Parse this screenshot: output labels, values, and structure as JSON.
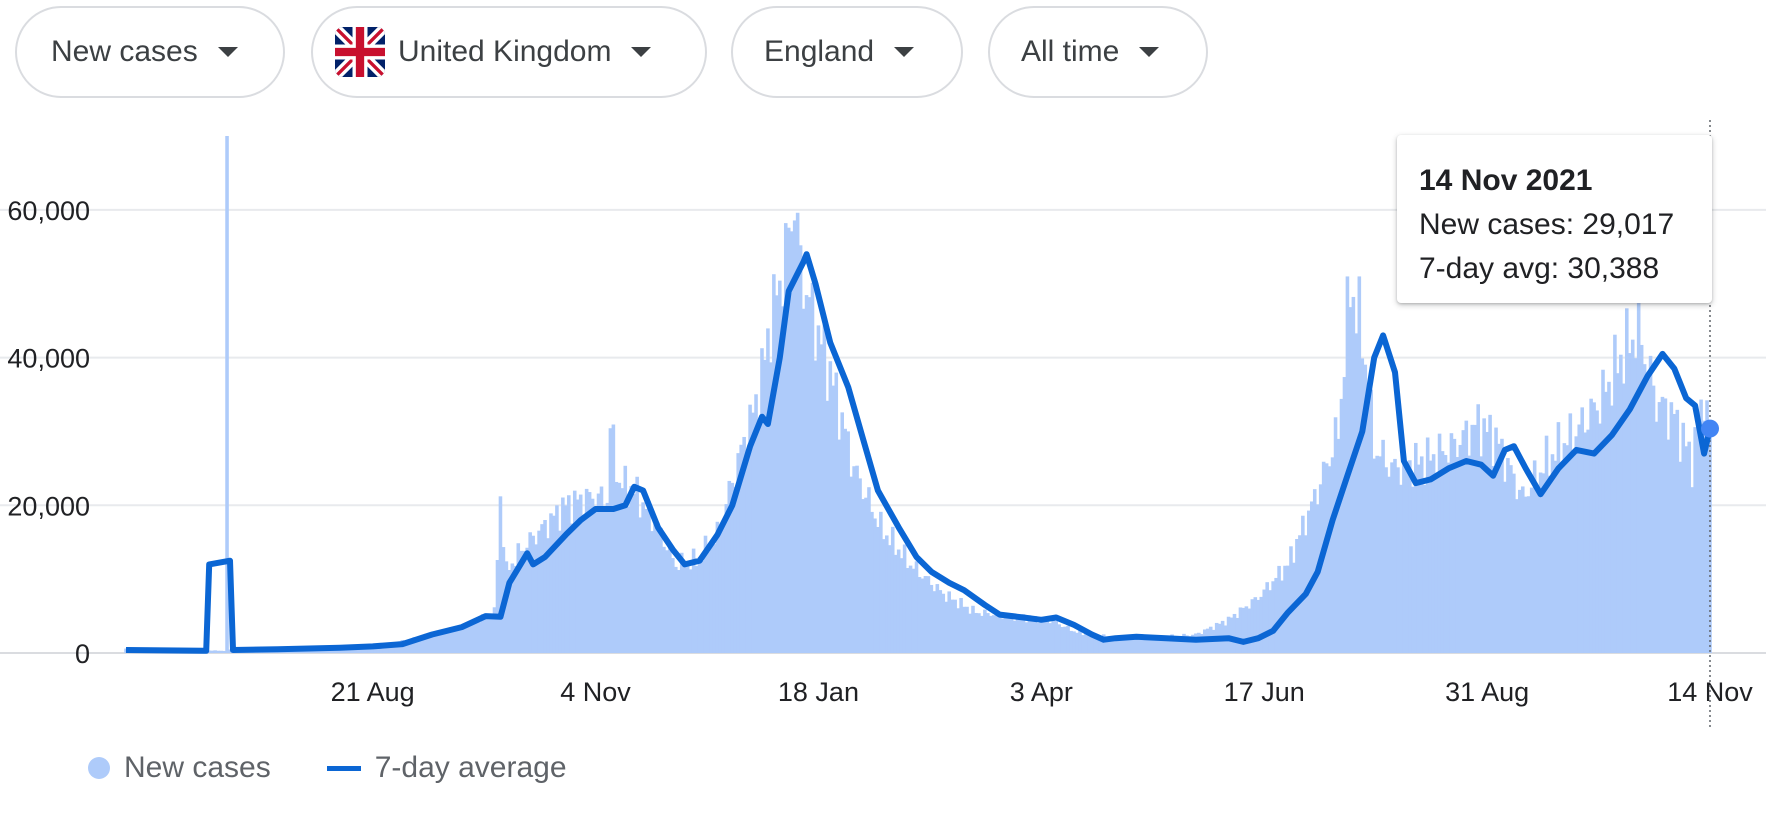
{
  "filters": {
    "metric": "New cases",
    "country": "United Kingdom",
    "region": "England",
    "period": "All time"
  },
  "colors": {
    "bars": "#aecbfa",
    "line": "#0b66d4",
    "marker": "#4285f4",
    "grid": "#e8eaed"
  },
  "tooltip": {
    "date": "14 Nov 2021",
    "new_cases_label": "New cases: 29,017",
    "avg_label": "7-day avg: 30,388"
  },
  "legend": {
    "bars_label": "New cases",
    "line_label": "7-day average"
  },
  "chart_data": {
    "type": "bar",
    "combined_with": "line",
    "x_axis_type": "date",
    "x_ticks": [
      {
        "date": "2020-08-21",
        "label": "21 Aug"
      },
      {
        "date": "2020-11-04",
        "label": "4 Nov"
      },
      {
        "date": "2021-01-18",
        "label": "18 Jan"
      },
      {
        "date": "2021-04-03",
        "label": "3 Apr"
      },
      {
        "date": "2021-06-17",
        "label": "17 Jun"
      },
      {
        "date": "2021-08-31",
        "label": "31 Aug"
      },
      {
        "date": "2021-11-14",
        "label": "14 Nov"
      }
    ],
    "xlim": [
      "2020-05-30",
      "2021-11-14"
    ],
    "ylim": [
      0,
      70000
    ],
    "y_ticks": [
      0,
      20000,
      40000,
      60000
    ],
    "y_tick_labels": [
      "0",
      "20,000",
      "40,000",
      "60,000"
    ],
    "grid": true,
    "legend_position": "bottom-left",
    "series": [
      {
        "name": "New cases",
        "style": "bars",
        "daily_anomaly": {
          "date": "2020-07-03",
          "value": 70000
        },
        "points": [
          [
            "2020-05-30",
            600
          ],
          [
            "2020-07-02",
            300
          ],
          [
            "2020-07-03",
            70000
          ],
          [
            "2020-07-04",
            400
          ],
          [
            "2020-07-15",
            500
          ],
          [
            "2020-08-01",
            700
          ],
          [
            "2020-08-21",
            900
          ],
          [
            "2020-09-05",
            2000
          ],
          [
            "2020-09-20",
            3500
          ],
          [
            "2020-10-01",
            5500
          ],
          [
            "2020-10-02",
            13000
          ],
          [
            "2020-10-03",
            21000
          ],
          [
            "2020-10-05",
            11000
          ],
          [
            "2020-10-10",
            14000
          ],
          [
            "2020-10-20",
            18000
          ],
          [
            "2020-10-25",
            20000
          ],
          [
            "2020-11-01",
            21000
          ],
          [
            "2020-11-08",
            21000
          ],
          [
            "2020-11-09",
            30500
          ],
          [
            "2020-11-12",
            23000
          ],
          [
            "2020-11-17",
            22000
          ],
          [
            "2020-11-25",
            17000
          ],
          [
            "2020-12-01",
            12000
          ],
          [
            "2020-12-08",
            12500
          ],
          [
            "2020-12-15",
            16000
          ],
          [
            "2020-12-22",
            26000
          ],
          [
            "2020-12-29",
            35000
          ],
          [
            "2021-01-02",
            45000
          ],
          [
            "2021-01-05",
            50000
          ],
          [
            "2021-01-08",
            56000
          ],
          [
            "2021-01-10",
            62000
          ],
          [
            "2021-01-12",
            52000
          ],
          [
            "2021-01-16",
            46000
          ],
          [
            "2021-01-22",
            38000
          ],
          [
            "2021-01-30",
            25000
          ],
          [
            "2021-02-08",
            17000
          ],
          [
            "2021-02-18",
            12000
          ],
          [
            "2021-03-01",
            8000
          ],
          [
            "2021-03-12",
            5500
          ],
          [
            "2021-03-25",
            5000
          ],
          [
            "2021-04-06",
            4500
          ],
          [
            "2021-04-15",
            2800
          ],
          [
            "2021-04-25",
            2200
          ],
          [
            "2021-05-10",
            2000
          ],
          [
            "2021-05-25",
            2500
          ],
          [
            "2021-06-05",
            4500
          ],
          [
            "2021-06-15",
            7500
          ],
          [
            "2021-06-25",
            12000
          ],
          [
            "2021-07-05",
            22000
          ],
          [
            "2021-07-12",
            30000
          ],
          [
            "2021-07-16",
            50000
          ],
          [
            "2021-07-20",
            43000
          ],
          [
            "2021-07-24",
            28000
          ],
          [
            "2021-07-30",
            25000
          ],
          [
            "2021-08-10",
            26000
          ],
          [
            "2021-08-20",
            28000
          ],
          [
            "2021-08-28",
            31000
          ],
          [
            "2021-09-03",
            29000
          ],
          [
            "2021-09-12",
            21000
          ],
          [
            "2021-09-20",
            26000
          ],
          [
            "2021-09-30",
            30000
          ],
          [
            "2021-10-08",
            34000
          ],
          [
            "2021-10-15",
            40000
          ],
          [
            "2021-10-21",
            44000
          ],
          [
            "2021-10-27",
            34000
          ],
          [
            "2021-11-02",
            32000
          ],
          [
            "2021-11-08",
            26000
          ],
          [
            "2021-11-12",
            35500
          ],
          [
            "2021-11-14",
            29017
          ]
        ]
      },
      {
        "name": "7-day average",
        "style": "line",
        "points": [
          [
            "2020-05-30",
            400
          ],
          [
            "2020-06-25",
            300
          ],
          [
            "2020-06-26",
            300
          ],
          [
            "2020-06-27",
            12000
          ],
          [
            "2020-07-04",
            12500
          ],
          [
            "2020-07-05",
            400
          ],
          [
            "2020-07-20",
            500
          ],
          [
            "2020-08-10",
            700
          ],
          [
            "2020-08-21",
            900
          ],
          [
            "2020-08-31",
            1200
          ],
          [
            "2020-09-10",
            2500
          ],
          [
            "2020-09-20",
            3500
          ],
          [
            "2020-09-28",
            5000
          ],
          [
            "2020-10-03",
            4900
          ],
          [
            "2020-10-06",
            9500
          ],
          [
            "2020-10-12",
            13500
          ],
          [
            "2020-10-14",
            12000
          ],
          [
            "2020-10-18",
            13000
          ],
          [
            "2020-10-25",
            16000
          ],
          [
            "2020-10-30",
            18000
          ],
          [
            "2020-11-04",
            19500
          ],
          [
            "2020-11-10",
            19500
          ],
          [
            "2020-11-14",
            20000
          ],
          [
            "2020-11-17",
            22500
          ],
          [
            "2020-11-20",
            22000
          ],
          [
            "2020-11-25",
            17000
          ],
          [
            "2020-11-30",
            14000
          ],
          [
            "2020-12-04",
            12000
          ],
          [
            "2020-12-09",
            12500
          ],
          [
            "2020-12-15",
            16000
          ],
          [
            "2020-12-20",
            20000
          ],
          [
            "2020-12-26",
            28000
          ],
          [
            "2020-12-30",
            32000
          ],
          [
            "2021-01-01",
            31000
          ],
          [
            "2021-01-05",
            40000
          ],
          [
            "2021-01-08",
            49000
          ],
          [
            "2021-01-13",
            53000
          ],
          [
            "2021-01-14",
            54000
          ],
          [
            "2021-01-17",
            50000
          ],
          [
            "2021-01-22",
            42000
          ],
          [
            "2021-01-28",
            36000
          ],
          [
            "2021-02-02",
            29000
          ],
          [
            "2021-02-07",
            22000
          ],
          [
            "2021-02-14",
            17000
          ],
          [
            "2021-02-20",
            13000
          ],
          [
            "2021-02-25",
            11000
          ],
          [
            "2021-03-03",
            9500
          ],
          [
            "2021-03-08",
            8500
          ],
          [
            "2021-03-15",
            6500
          ],
          [
            "2021-03-20",
            5200
          ],
          [
            "2021-03-28",
            4800
          ],
          [
            "2021-04-03",
            4500
          ],
          [
            "2021-04-08",
            4800
          ],
          [
            "2021-04-14",
            3800
          ],
          [
            "2021-04-20",
            2500
          ],
          [
            "2021-04-24",
            1800
          ],
          [
            "2021-04-28",
            2000
          ],
          [
            "2021-05-05",
            2200
          ],
          [
            "2021-05-15",
            2000
          ],
          [
            "2021-05-25",
            1800
          ],
          [
            "2021-06-05",
            2000
          ],
          [
            "2021-06-10",
            1500
          ],
          [
            "2021-06-15",
            2000
          ],
          [
            "2021-06-20",
            3000
          ],
          [
            "2021-06-25",
            5500
          ],
          [
            "2021-07-01",
            8000
          ],
          [
            "2021-07-05",
            11000
          ],
          [
            "2021-07-10",
            18000
          ],
          [
            "2021-07-15",
            24000
          ],
          [
            "2021-07-20",
            30000
          ],
          [
            "2021-07-24",
            40000
          ],
          [
            "2021-07-27",
            43000
          ],
          [
            "2021-07-31",
            38000
          ],
          [
            "2021-08-03",
            26000
          ],
          [
            "2021-08-07",
            23000
          ],
          [
            "2021-08-12",
            23500
          ],
          [
            "2021-08-18",
            25000
          ],
          [
            "2021-08-24",
            26000
          ],
          [
            "2021-08-29",
            25500
          ],
          [
            "2021-09-02",
            24000
          ],
          [
            "2021-09-06",
            27500
          ],
          [
            "2021-09-09",
            28000
          ],
          [
            "2021-09-13",
            25000
          ],
          [
            "2021-09-18",
            21500
          ],
          [
            "2021-09-24",
            25000
          ],
          [
            "2021-09-30",
            27500
          ],
          [
            "2021-10-06",
            27000
          ],
          [
            "2021-10-12",
            29500
          ],
          [
            "2021-10-18",
            33000
          ],
          [
            "2021-10-24",
            37500
          ],
          [
            "2021-10-29",
            40500
          ],
          [
            "2021-11-02",
            38500
          ],
          [
            "2021-11-06",
            34500
          ],
          [
            "2021-11-09",
            33500
          ],
          [
            "2021-11-12",
            27000
          ],
          [
            "2021-11-14",
            30388
          ]
        ]
      }
    ]
  }
}
